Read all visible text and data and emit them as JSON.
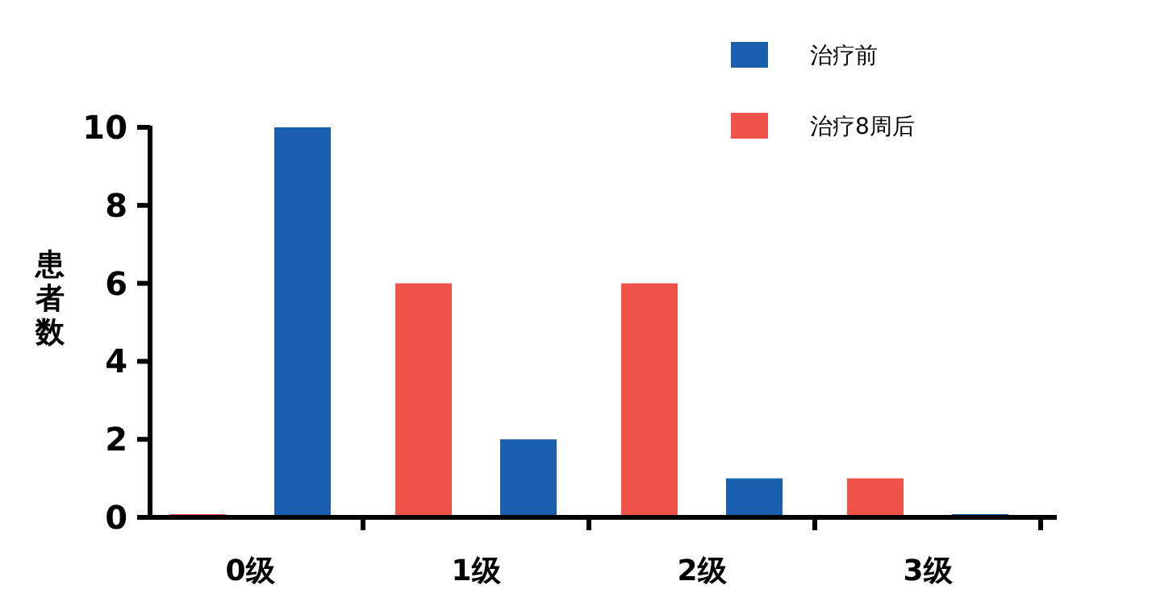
{
  "chart_data": {
    "type": "bar",
    "ylabel": "患者数",
    "categories": [
      "0级",
      "1级",
      "2级",
      "3级"
    ],
    "series": [
      {
        "name": "治疗前",
        "color": "#1a5fad",
        "values": [
          10,
          2,
          1,
          0
        ]
      },
      {
        "name": "治疗8周后",
        "color": "#ef5249",
        "values": [
          0,
          6,
          6,
          1
        ]
      }
    ],
    "ylim": [
      0,
      10
    ],
    "yticks": [
      0,
      2,
      4,
      6,
      8,
      10
    ],
    "legend": "top right",
    "grid": false
  }
}
